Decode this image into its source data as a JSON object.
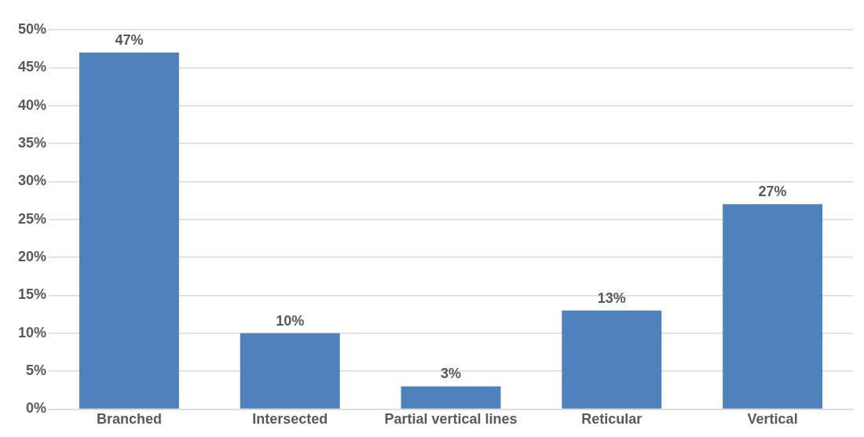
{
  "chart_data": {
    "type": "bar",
    "categories": [
      "Branched",
      "Intersected",
      "Partial vertical lines",
      "Reticular",
      "Vertical"
    ],
    "values": [
      47,
      10,
      3,
      13,
      27
    ],
    "color": "#4f81bd",
    "value_labels": [
      "47%",
      "10%",
      "3%",
      "13%",
      "27%"
    ],
    "ylim": [
      0,
      50
    ],
    "yticks": [
      {
        "value": 0,
        "label": "0%"
      },
      {
        "value": 5,
        "label": "5%"
      },
      {
        "value": 10,
        "label": "10%"
      },
      {
        "value": 15,
        "label": "15%"
      },
      {
        "value": 20,
        "label": "20%"
      },
      {
        "value": 25,
        "label": "25%"
      },
      {
        "value": 30,
        "label": "30%"
      },
      {
        "value": 35,
        "label": "35%"
      },
      {
        "value": 40,
        "label": "40%"
      },
      {
        "value": 45,
        "label": "45%"
      },
      {
        "value": 50,
        "label": "50%"
      }
    ],
    "grid": "y",
    "legend": false
  }
}
